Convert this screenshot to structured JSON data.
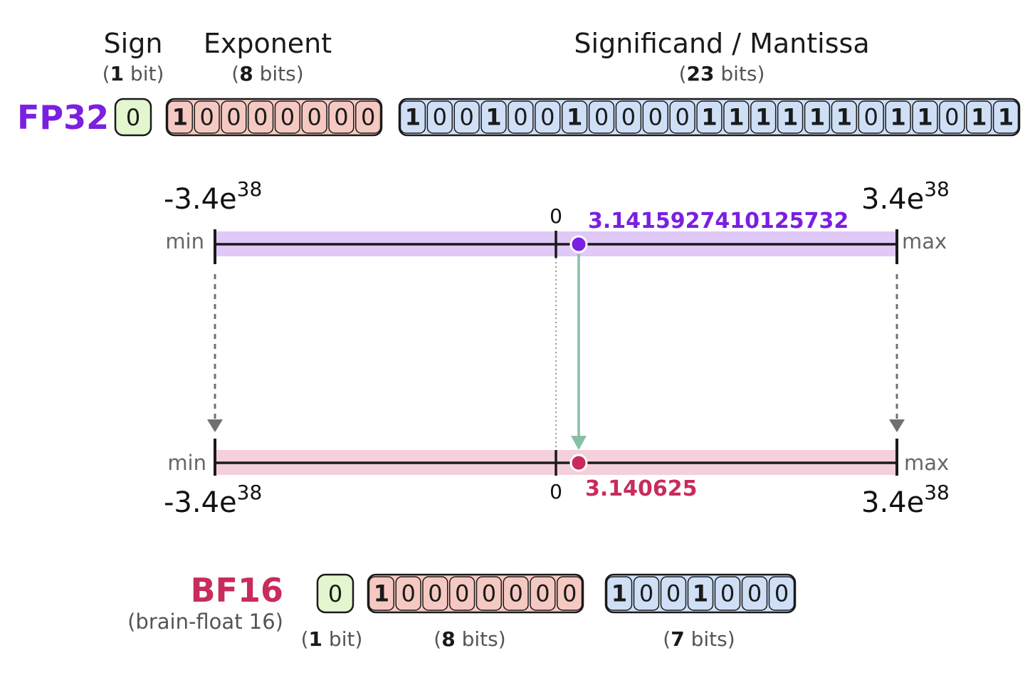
{
  "headers": {
    "sign": {
      "title": "Sign",
      "count": "1",
      "unit": "bit"
    },
    "exponent": {
      "title": "Exponent",
      "count": "8",
      "unit": "bits"
    },
    "mantissa": {
      "title": "Significand / Mantissa",
      "count": "23",
      "unit": "bits"
    }
  },
  "fp32": {
    "label": "FP32",
    "sign": "0",
    "exponent": "10000000",
    "mantissa": "10010010000111111011011",
    "value": "3.1415927410125732"
  },
  "bf16": {
    "label": "BF16",
    "sublabel": "(brain-float 16)",
    "sign": "0",
    "exponent": "10000000",
    "mantissa": "1001000",
    "value": "3.140625",
    "sign_bits": {
      "count": "1",
      "unit": "bit"
    },
    "exponent_bits": {
      "count": "8",
      "unit": "bits"
    },
    "mantissa_bits": {
      "count": "7",
      "unit": "bits"
    }
  },
  "range": {
    "min_label": "min",
    "max_label": "max",
    "zero": "0",
    "min_value": {
      "base": "-3.4e",
      "exp": "38"
    },
    "max_value": {
      "base": "3.4e",
      "exp": "38"
    }
  },
  "colors": {
    "fp32": "#7b1fe0",
    "bf16": "#c72c5b",
    "sign_fill": "#e3f6cf",
    "exponent_fill": "#f5c9c2",
    "mantissa_fill": "#cfdff6",
    "fp32_band": "#e0c8f7",
    "bf16_band": "#f4d0db",
    "arrow": "#86bfa7",
    "dashed": "#707070"
  }
}
